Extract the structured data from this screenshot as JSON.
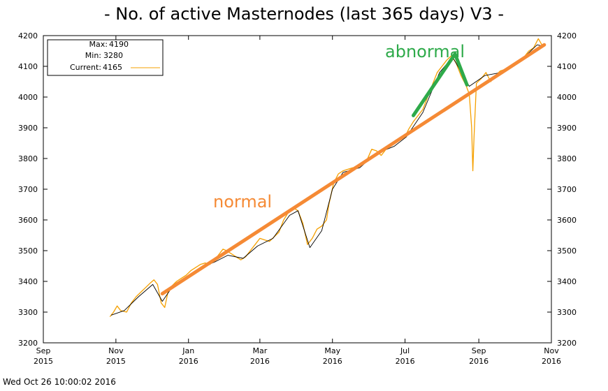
{
  "chart_data": {
    "type": "line",
    "title": "- No. of active Masternodes (last 365 days) V3 -",
    "xlabel": "",
    "ylabel": "",
    "ylim": [
      3200,
      4200
    ],
    "yticks": [
      3200,
      3300,
      3400,
      3500,
      3600,
      3700,
      3800,
      3900,
      4000,
      4100,
      4200
    ],
    "xlim": [
      "2015-09-01",
      "2016-11-01"
    ],
    "xticks": [
      {
        "month": "Sep",
        "year": "2015",
        "date": "2015-09-01"
      },
      {
        "month": "Nov",
        "year": "2015",
        "date": "2015-11-01"
      },
      {
        "month": "Jan",
        "year": "2016",
        "date": "2016-01-01"
      },
      {
        "month": "Mar",
        "year": "2016",
        "date": "2016-03-01"
      },
      {
        "month": "May",
        "year": "2016",
        "date": "2016-05-01"
      },
      {
        "month": "Jul",
        "year": "2016",
        "date": "2016-07-01"
      },
      {
        "month": "Sep",
        "year": "2016",
        "date": "2016-09-01"
      },
      {
        "month": "Nov",
        "year": "2016",
        "date": "2016-11-01"
      }
    ],
    "grid": false,
    "legend": {
      "position": "top-left",
      "max_label": "Max:",
      "max_value": "4190",
      "min_label": "Min:",
      "min_value": "3280",
      "current_label": "Current:",
      "current_value": "4165"
    },
    "series": [
      {
        "color": "#f5a000",
        "points": [
          [
            "2015-10-27",
            3285
          ],
          [
            "2015-10-30",
            3300
          ],
          [
            "2015-11-02",
            3320
          ],
          [
            "2015-11-05",
            3305
          ],
          [
            "2015-11-10",
            3300
          ],
          [
            "2015-11-14",
            3330
          ],
          [
            "2015-11-18",
            3350
          ],
          [
            "2015-11-22",
            3365
          ],
          [
            "2015-11-26",
            3380
          ],
          [
            "2015-11-30",
            3395
          ],
          [
            "2015-12-03",
            3405
          ],
          [
            "2015-12-06",
            3390
          ],
          [
            "2015-12-09",
            3330
          ],
          [
            "2015-12-12",
            3315
          ],
          [
            "2015-12-15",
            3370
          ],
          [
            "2015-12-18",
            3385
          ],
          [
            "2015-12-22",
            3400
          ],
          [
            "2015-12-26",
            3410
          ],
          [
            "2015-12-30",
            3420
          ],
          [
            "2016-01-03",
            3435
          ],
          [
            "2016-01-07",
            3445
          ],
          [
            "2016-01-11",
            3455
          ],
          [
            "2016-01-15",
            3460
          ],
          [
            "2016-01-19",
            3455
          ],
          [
            "2016-01-23",
            3470
          ],
          [
            "2016-01-27",
            3490
          ],
          [
            "2016-01-30",
            3505
          ],
          [
            "2016-02-02",
            3500
          ],
          [
            "2016-02-06",
            3490
          ],
          [
            "2016-02-10",
            3480
          ],
          [
            "2016-02-14",
            3470
          ],
          [
            "2016-02-18",
            3480
          ],
          [
            "2016-02-22",
            3500
          ],
          [
            "2016-02-26",
            3520
          ],
          [
            "2016-03-01",
            3540
          ],
          [
            "2016-03-05",
            3535
          ],
          [
            "2016-03-09",
            3530
          ],
          [
            "2016-03-13",
            3545
          ],
          [
            "2016-03-17",
            3560
          ],
          [
            "2016-03-21",
            3600
          ],
          [
            "2016-03-25",
            3625
          ],
          [
            "2016-03-29",
            3640
          ],
          [
            "2016-04-02",
            3630
          ],
          [
            "2016-04-06",
            3590
          ],
          [
            "2016-04-10",
            3520
          ],
          [
            "2016-04-14",
            3540
          ],
          [
            "2016-04-18",
            3570
          ],
          [
            "2016-04-22",
            3580
          ],
          [
            "2016-04-26",
            3600
          ],
          [
            "2016-04-28",
            3650
          ],
          [
            "2016-05-02",
            3720
          ],
          [
            "2016-05-06",
            3750
          ],
          [
            "2016-05-10",
            3760
          ],
          [
            "2016-05-14",
            3765
          ],
          [
            "2016-05-18",
            3770
          ],
          [
            "2016-05-22",
            3770
          ],
          [
            "2016-05-26",
            3785
          ],
          [
            "2016-05-30",
            3795
          ],
          [
            "2016-06-03",
            3830
          ],
          [
            "2016-06-07",
            3825
          ],
          [
            "2016-06-11",
            3810
          ],
          [
            "2016-06-15",
            3830
          ],
          [
            "2016-06-19",
            3840
          ],
          [
            "2016-06-23",
            3855
          ],
          [
            "2016-06-27",
            3860
          ],
          [
            "2016-07-01",
            3870
          ],
          [
            "2016-07-04",
            3895
          ],
          [
            "2016-07-08",
            3920
          ],
          [
            "2016-07-12",
            3940
          ],
          [
            "2016-07-16",
            3960
          ],
          [
            "2016-07-20",
            4000
          ],
          [
            "2016-07-24",
            4040
          ],
          [
            "2016-07-28",
            4080
          ],
          [
            "2016-08-01",
            4100
          ],
          [
            "2016-08-05",
            4120
          ],
          [
            "2016-08-09",
            4135
          ],
          [
            "2016-08-13",
            4110
          ],
          [
            "2016-08-17",
            4070
          ],
          [
            "2016-08-21",
            4040
          ],
          [
            "2016-08-24",
            4010
          ],
          [
            "2016-08-26",
            3900
          ],
          [
            "2016-08-27",
            3760
          ],
          [
            "2016-08-28",
            3870
          ],
          [
            "2016-08-30",
            4045
          ],
          [
            "2016-09-03",
            4060
          ],
          [
            "2016-09-07",
            4080
          ],
          [
            "2016-09-11",
            4050
          ],
          [
            "2016-09-15",
            4070
          ],
          [
            "2016-09-19",
            4085
          ],
          [
            "2016-09-23",
            4090
          ],
          [
            "2016-09-27",
            4095
          ],
          [
            "2016-10-01",
            4110
          ],
          [
            "2016-10-05",
            4120
          ],
          [
            "2016-10-09",
            4130
          ],
          [
            "2016-10-13",
            4150
          ],
          [
            "2016-10-17",
            4160
          ],
          [
            "2016-10-21",
            4190
          ],
          [
            "2016-10-24",
            4170
          ],
          [
            "2016-10-26",
            4165
          ]
        ]
      },
      {
        "color": "#000000",
        "points": [
          [
            "2015-10-28",
            3290
          ],
          [
            "2015-11-08",
            3305
          ],
          [
            "2015-11-20",
            3350
          ],
          [
            "2015-12-02",
            3390
          ],
          [
            "2015-12-10",
            3335
          ],
          [
            "2015-12-18",
            3380
          ],
          [
            "2015-12-30",
            3415
          ],
          [
            "2016-01-12",
            3445
          ],
          [
            "2016-01-24",
            3465
          ],
          [
            "2016-02-03",
            3485
          ],
          [
            "2016-02-16",
            3475
          ],
          [
            "2016-02-28",
            3515
          ],
          [
            "2016-03-12",
            3540
          ],
          [
            "2016-03-26",
            3615
          ],
          [
            "2016-04-02",
            3630
          ],
          [
            "2016-04-12",
            3510
          ],
          [
            "2016-04-22",
            3565
          ],
          [
            "2016-05-01",
            3700
          ],
          [
            "2016-05-10",
            3755
          ],
          [
            "2016-05-24",
            3770
          ],
          [
            "2016-06-06",
            3815
          ],
          [
            "2016-06-22",
            3840
          ],
          [
            "2016-07-02",
            3870
          ],
          [
            "2016-07-16",
            3950
          ],
          [
            "2016-07-30",
            4080
          ],
          [
            "2016-08-10",
            4130
          ],
          [
            "2016-08-24",
            4035
          ],
          [
            "2016-09-06",
            4070
          ],
          [
            "2016-09-20",
            4080
          ],
          [
            "2016-10-05",
            4115
          ],
          [
            "2016-10-20",
            4170
          ],
          [
            "2016-10-26",
            4165
          ]
        ]
      }
    ],
    "annotations": [
      {
        "text": "normal",
        "color": "#f58a35",
        "line": [
          [
            "2015-12-10",
            3360
          ],
          [
            "2016-10-26",
            4170
          ]
        ]
      },
      {
        "text": "abnormal",
        "color": "#2eaa4a",
        "line": [
          [
            "2016-07-08",
            3940
          ],
          [
            "2016-08-12",
            4140
          ],
          [
            "2016-08-22",
            4040
          ]
        ]
      }
    ]
  },
  "footer": {
    "timestamp": "Wed Oct 26 10:00:02 2016"
  }
}
